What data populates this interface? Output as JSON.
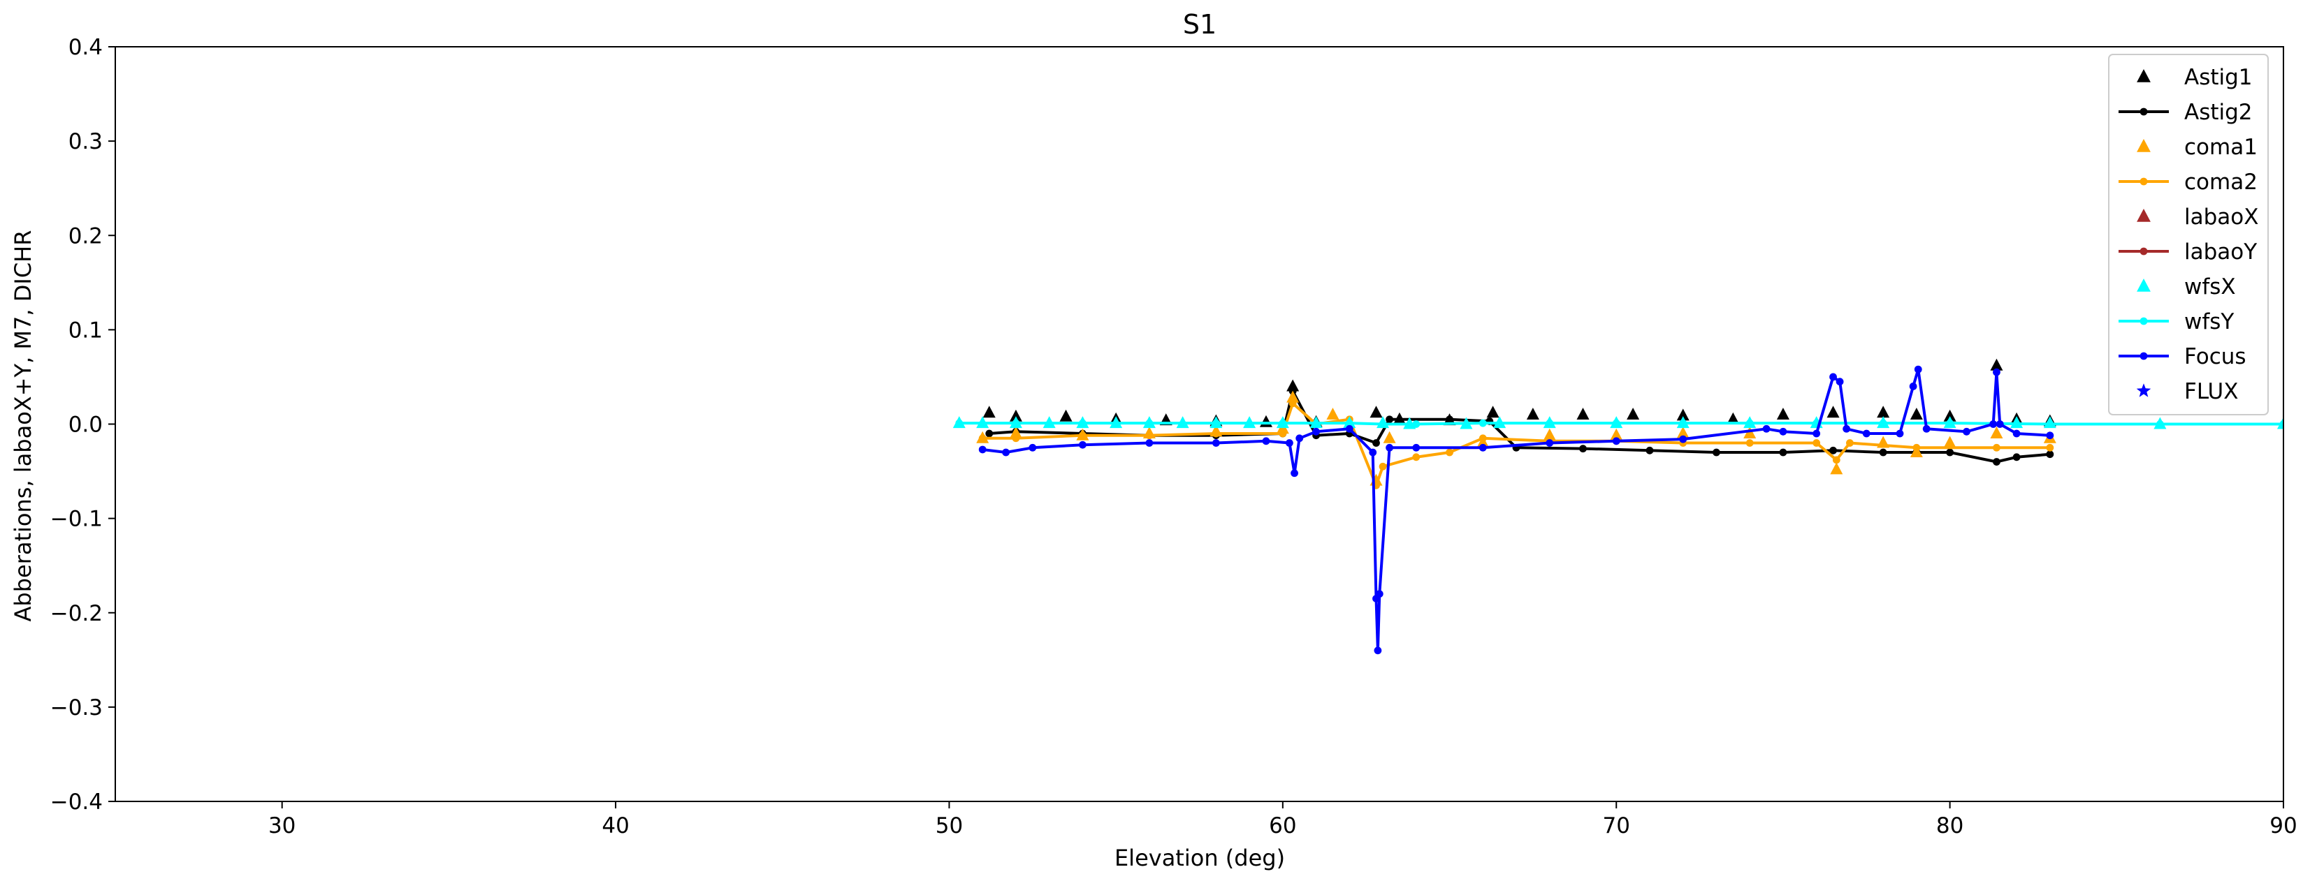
{
  "chart_data": {
    "type": "line",
    "title": "S1",
    "xlabel": "Elevation (deg)",
    "ylabel": "Abberations, labaoX+Y, M7, DICHR",
    "xlim": [
      25,
      90
    ],
    "ylim": [
      -0.4,
      0.4
    ],
    "xticks": [
      30,
      40,
      50,
      60,
      70,
      80,
      90
    ],
    "xtick_labels": [
      "30",
      "40",
      "50",
      "60",
      "70",
      "80",
      "90"
    ],
    "yticks": [
      0.4,
      0.3,
      0.2,
      0.1,
      0.0,
      -0.1,
      -0.2,
      -0.3,
      -0.4
    ],
    "ytick_labels": [
      "0.4",
      "0.3",
      "0.2",
      "0.1",
      "0.0",
      "−0.1",
      "−0.2",
      "−0.3",
      "−0.4"
    ],
    "grid": false,
    "legend_position": "top-right",
    "series": [
      {
        "name": "Astig1",
        "color": "#000000",
        "marker": "triangle",
        "line": false,
        "x": [
          51.2,
          52,
          53.5,
          55,
          56.5,
          58,
          59.5,
          60.3,
          61,
          62.8,
          63.5,
          65,
          66.3,
          67.5,
          69,
          70.5,
          72,
          73.5,
          75,
          76.5,
          78,
          79,
          80,
          81.4,
          82,
          83
        ],
        "y": [
          0.012,
          0.008,
          0.008,
          0.005,
          0.004,
          0.003,
          0.002,
          0.04,
          0.002,
          0.012,
          0.005,
          0.004,
          0.012,
          0.01,
          0.01,
          0.01,
          0.009,
          0.005,
          0.01,
          0.012,
          0.012,
          0.01,
          0.008,
          0.062,
          0.005,
          0.003
        ]
      },
      {
        "name": "Astig2",
        "color": "#000000",
        "marker": "dot",
        "line": true,
        "x": [
          51.2,
          52,
          54,
          56,
          58,
          60,
          60.3,
          61,
          62,
          62.8,
          63.2,
          65,
          66.2,
          67,
          69,
          71,
          73,
          75,
          76.5,
          78,
          79,
          80,
          81.4,
          82,
          83
        ],
        "y": [
          -0.01,
          -0.008,
          -0.01,
          -0.012,
          -0.012,
          -0.01,
          0.035,
          -0.012,
          -0.01,
          -0.02,
          0.005,
          0.005,
          0.003,
          -0.025,
          -0.026,
          -0.028,
          -0.03,
          -0.03,
          -0.028,
          -0.03,
          -0.03,
          -0.03,
          -0.04,
          -0.035,
          -0.032
        ]
      },
      {
        "name": "coma1",
        "color": "#ffa500",
        "marker": "triangle",
        "line": false,
        "x": [
          51,
          52,
          54,
          56,
          58,
          60,
          60.3,
          61.5,
          62.8,
          63.2,
          66,
          68,
          70,
          72,
          74,
          76.6,
          78,
          79,
          80,
          81.4,
          83
        ],
        "y": [
          -0.015,
          -0.01,
          -0.012,
          -0.01,
          -0.008,
          -0.005,
          0.028,
          0.01,
          -0.06,
          -0.015,
          -0.02,
          -0.012,
          -0.012,
          -0.01,
          -0.01,
          -0.048,
          -0.02,
          -0.03,
          -0.02,
          -0.01,
          -0.015
        ]
      },
      {
        "name": "coma2",
        "color": "#ffa500",
        "marker": "dot",
        "line": true,
        "x": [
          51,
          52,
          54,
          56,
          58,
          60,
          60.3,
          61,
          62,
          62.8,
          63,
          64,
          65,
          66,
          68,
          70,
          72,
          74,
          76,
          76.6,
          77,
          79,
          81.4,
          83
        ],
        "y": [
          -0.015,
          -0.015,
          -0.012,
          -0.012,
          -0.01,
          -0.01,
          0.022,
          0.0,
          0.005,
          -0.065,
          -0.045,
          -0.035,
          -0.03,
          -0.015,
          -0.018,
          -0.018,
          -0.02,
          -0.02,
          -0.02,
          -0.038,
          -0.02,
          -0.025,
          -0.025,
          -0.025
        ]
      },
      {
        "name": "labaoX",
        "color": "#a52a2a",
        "marker": "triangle",
        "line": false,
        "x": [],
        "y": []
      },
      {
        "name": "labaoY",
        "color": "#a52a2a",
        "marker": "dot",
        "line": true,
        "x": [],
        "y": []
      },
      {
        "name": "wfsX",
        "color": "#00ffff",
        "marker": "triangle",
        "line": false,
        "x": [
          50.3,
          51,
          52,
          53,
          54,
          55,
          56,
          57,
          58,
          59,
          60,
          61,
          62,
          63,
          63.8,
          65.5,
          66.5,
          68,
          70,
          72,
          74,
          76,
          78,
          80,
          82,
          83,
          86.3,
          90
        ],
        "y": [
          0.001,
          0.001,
          0.001,
          0.001,
          0.001,
          0.001,
          0.001,
          0.001,
          0.001,
          0.001,
          0.001,
          0.001,
          0.001,
          0.001,
          0.0,
          0.0,
          0.001,
          0.001,
          0.001,
          0.001,
          0.001,
          0.001,
          0.001,
          0.001,
          0.001,
          0.001,
          0.0,
          0.0
        ]
      },
      {
        "name": "wfsY",
        "color": "#00ffff",
        "marker": "dot",
        "line": true,
        "x": [
          50.3,
          52,
          54,
          56,
          58,
          60,
          62,
          63,
          64,
          66,
          68,
          70,
          72,
          74,
          76,
          78,
          80,
          83,
          86.3,
          90
        ],
        "y": [
          0.001,
          0.001,
          0.001,
          0.001,
          0.001,
          0.001,
          0.001,
          0.0,
          0.0,
          0.001,
          0.001,
          0.001,
          0.001,
          0.001,
          0.001,
          0.001,
          0.001,
          0.0,
          0.0,
          0.0
        ]
      },
      {
        "name": "Focus",
        "color": "#0000ff",
        "marker": "dot",
        "line": true,
        "x": [
          51,
          51.7,
          52.5,
          54,
          56,
          58,
          59.5,
          60.2,
          60.35,
          60.5,
          61,
          62,
          62.7,
          62.8,
          62.85,
          62.9,
          63.2,
          64,
          66,
          68,
          70,
          72,
          74.5,
          75,
          76,
          76.5,
          76.7,
          76.9,
          77.5,
          78.5,
          78.9,
          79.05,
          79.3,
          80.5,
          81.3,
          81.4,
          81.5,
          82,
          83
        ],
        "y": [
          -0.027,
          -0.03,
          -0.025,
          -0.022,
          -0.02,
          -0.02,
          -0.018,
          -0.02,
          -0.052,
          -0.015,
          -0.008,
          -0.005,
          -0.03,
          -0.185,
          -0.24,
          -0.18,
          -0.025,
          -0.025,
          -0.025,
          -0.02,
          -0.018,
          -0.016,
          -0.005,
          -0.008,
          -0.01,
          0.05,
          0.045,
          -0.005,
          -0.01,
          -0.01,
          0.04,
          0.058,
          -0.005,
          -0.008,
          0.0,
          0.055,
          0.0,
          -0.01,
          -0.012
        ]
      },
      {
        "name": "FLUX",
        "color": "#0000ff",
        "marker": "star",
        "line": false,
        "x": [],
        "y": []
      }
    ]
  }
}
